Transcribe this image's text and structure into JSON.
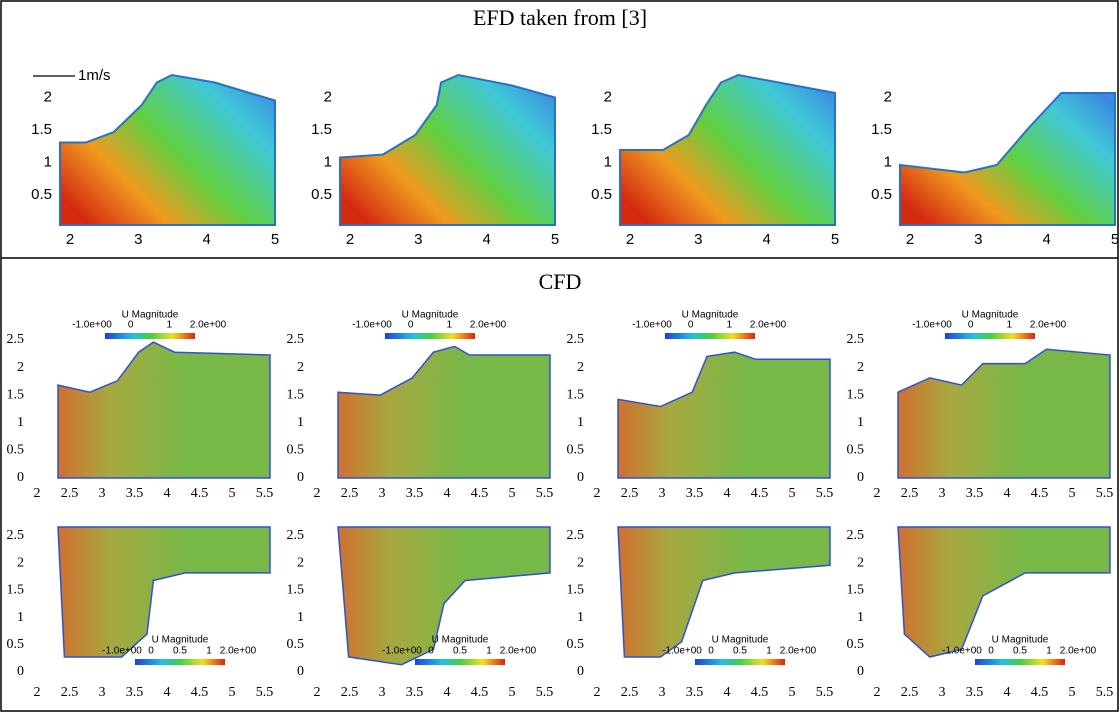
{
  "efd": {
    "title": "EFD taken from [3]",
    "scale_label": "1m/s",
    "panels": [
      {
        "xticks": [
          "2",
          "3",
          "4",
          "5"
        ],
        "yticks": [
          "0.5",
          "1",
          "1.5",
          "2"
        ]
      },
      {
        "xticks": [
          "2",
          "3",
          "4",
          "5"
        ],
        "yticks": [
          "0.5",
          "1",
          "1.5",
          "2"
        ]
      },
      {
        "xticks": [
          "2",
          "3",
          "4",
          "5"
        ],
        "yticks": [
          "0.5",
          "1",
          "1.5",
          "2"
        ]
      },
      {
        "xticks": [
          "2",
          "3",
          "4",
          "5"
        ],
        "yticks": [
          "0.5",
          "1",
          "1.5",
          "2"
        ]
      }
    ]
  },
  "cfd": {
    "title": "CFD",
    "rows": [
      {
        "panels": [
          {
            "xticks": [
              "2",
              "2.5",
              "3",
              "3.5",
              "4",
              "4.5",
              "5",
              "5.5"
            ],
            "yticks": [
              "0",
              "0.5",
              "1",
              "1.5",
              "2",
              "2.5"
            ],
            "colorbar": {
              "title": "U Magnitude",
              "labels": [
                "-1.0e+00",
                "0",
                "1",
                "2.0e+00"
              ]
            }
          },
          {
            "xticks": [
              "2",
              "2.5",
              "3",
              "3.5",
              "4",
              "4.5",
              "5",
              "5.5"
            ],
            "yticks": [
              "0",
              "0.5",
              "1",
              "1.5",
              "2",
              "2.5"
            ],
            "colorbar": {
              "title": "U Magnitude",
              "labels": [
                "-1.0e+00",
                "0",
                "1",
                "2.0e+00"
              ]
            }
          },
          {
            "xticks": [
              "2",
              "2.5",
              "3",
              "3.5",
              "4",
              "4.5",
              "5",
              "5.5"
            ],
            "yticks": [
              "0",
              "0.5",
              "1",
              "1.5",
              "2",
              "2.5"
            ],
            "colorbar": {
              "title": "U Magnitude",
              "labels": [
                "-1.0e+00",
                "0",
                "1",
                "2.0e+00"
              ]
            }
          },
          {
            "xticks": [
              "2",
              "2.5",
              "3",
              "3.5",
              "4",
              "4.5",
              "5",
              "5.5"
            ],
            "yticks": [
              "0",
              "0.5",
              "1",
              "1.5",
              "2",
              "2.5"
            ],
            "colorbar": {
              "title": "U Magnitude",
              "labels": [
                "-1.0e+00",
                "0",
                "1",
                "2.0e+00"
              ]
            }
          }
        ]
      },
      {
        "panels": [
          {
            "xticks": [
              "2",
              "2.5",
              "3",
              "3.5",
              "4",
              "4.5",
              "5",
              "5.5"
            ],
            "yticks": [
              "0",
              "0.5",
              "1",
              "1.5",
              "2",
              "2.5"
            ],
            "colorbar": {
              "title": "U Magnitude",
              "labels": [
                "-1.0e+00",
                "0",
                "0.5",
                "1",
                "2.0e+00"
              ]
            }
          },
          {
            "xticks": [
              "2",
              "2.5",
              "3",
              "3.5",
              "4",
              "4.5",
              "5",
              "5.5"
            ],
            "yticks": [
              "0",
              "0.5",
              "1",
              "1.5",
              "2",
              "2.5"
            ],
            "colorbar": {
              "title": "U Magnitude",
              "labels": [
                "-1.0e+00",
                "0",
                "0.5",
                "1",
                "2.0e+00"
              ]
            }
          },
          {
            "xticks": [
              "2",
              "2.5",
              "3",
              "3.5",
              "4",
              "4.5",
              "5",
              "5.5"
            ],
            "yticks": [
              "0",
              "0.5",
              "1",
              "1.5",
              "2",
              "2.5"
            ],
            "colorbar": {
              "title": "U Magnitude",
              "labels": [
                "-1.0e+00",
                "0",
                "0.5",
                "1",
                "2.0e+00"
              ]
            }
          },
          {
            "xticks": [
              "2",
              "2.5",
              "3",
              "3.5",
              "4",
              "4.5",
              "5",
              "5.5"
            ],
            "yticks": [
              "0",
              "0.5",
              "1",
              "1.5",
              "2",
              "2.5"
            ],
            "colorbar": {
              "title": "U Magnitude",
              "labels": [
                "-1.0e+00",
                "0",
                "0.5",
                "1",
                "2.0e+00"
              ]
            }
          }
        ]
      }
    ]
  }
}
